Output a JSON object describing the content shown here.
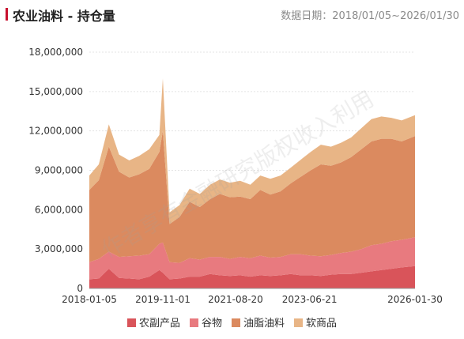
{
  "header": {
    "title": "农业油料 - 持仓量",
    "date_label": "数据日期：",
    "date_range": "2018/01/05~2026/01/30"
  },
  "watermark": "作者享有金融研究版权收入利用",
  "colors": {
    "title_accent": "#c8102e",
    "series": [
      "#d9545a",
      "#e87a7f",
      "#db8a5f",
      "#e8b586"
    ]
  },
  "chart_data": {
    "type": "area",
    "stacked": true,
    "title": "农业油料 - 持仓量",
    "x_start": "2018-01-05",
    "x_end": "2026-01-30",
    "x_ticks": [
      "2018-01-05",
      "2019-11-01",
      "2021-08-20",
      "2023-06-21",
      "2026-01-30"
    ],
    "ylim": [
      0,
      18000000
    ],
    "y_ticks": [
      0,
      3000000,
      6000000,
      9000000,
      12000000,
      15000000,
      18000000
    ],
    "y_tick_labels": [
      "0",
      "3,000,000",
      "6,000,000",
      "9,000,000",
      "12,000,000",
      "15,000,000",
      "18,000,000"
    ],
    "grid": true,
    "legend_position": "bottom",
    "x": [
      "2018-01",
      "2018-04",
      "2018-07",
      "2018-10",
      "2019-01",
      "2019-04",
      "2019-07",
      "2019-10",
      "2019-11",
      "2020-01",
      "2020-04",
      "2020-07",
      "2020-10",
      "2021-01",
      "2021-04",
      "2021-07",
      "2021-10",
      "2022-01",
      "2022-04",
      "2022-07",
      "2022-10",
      "2023-01",
      "2023-04",
      "2023-07",
      "2023-10",
      "2024-01",
      "2024-04",
      "2024-07",
      "2024-10",
      "2025-01",
      "2025-04",
      "2025-07",
      "2025-10",
      "2026-01"
    ],
    "series": [
      {
        "name": "农副产品",
        "values": [
          700000,
          750000,
          1500000,
          800000,
          750000,
          700000,
          900000,
          1400000,
          1200000,
          700000,
          750000,
          900000,
          900000,
          1100000,
          1000000,
          950000,
          1000000,
          900000,
          1000000,
          950000,
          1000000,
          1100000,
          1000000,
          1000000,
          950000,
          1050000,
          1100000,
          1100000,
          1200000,
          1300000,
          1400000,
          1500000,
          1600000,
          1700000
        ]
      },
      {
        "name": "谷物",
        "values": [
          1300000,
          1500000,
          1300000,
          1600000,
          1700000,
          1800000,
          1700000,
          2000000,
          2300000,
          1300000,
          1200000,
          1400000,
          1300000,
          1300000,
          1400000,
          1300000,
          1400000,
          1400000,
          1500000,
          1400000,
          1400000,
          1500000,
          1600000,
          1500000,
          1500000,
          1500000,
          1600000,
          1700000,
          1800000,
          2000000,
          2000000,
          2100000,
          2100000,
          2200000
        ]
      },
      {
        "name": "油脂油料",
        "values": [
          5500000,
          6000000,
          8000000,
          6500000,
          6000000,
          6200000,
          6500000,
          7000000,
          8500000,
          2900000,
          3500000,
          4300000,
          4000000,
          4400000,
          4800000,
          4700000,
          4600000,
          4500000,
          5000000,
          4800000,
          5000000,
          5400000,
          5900000,
          6500000,
          7000000,
          6800000,
          6900000,
          7200000,
          7600000,
          7900000,
          8000000,
          7800000,
          7500000,
          7700000
        ]
      },
      {
        "name": "软商品",
        "values": [
          1100000,
          1200000,
          1700000,
          1300000,
          1300000,
          1400000,
          1500000,
          1300000,
          4000000,
          900000,
          900000,
          1000000,
          1000000,
          1100000,
          1100000,
          1100000,
          1200000,
          1100000,
          1100000,
          1200000,
          1200000,
          1200000,
          1300000,
          1400000,
          1500000,
          1450000,
          1500000,
          1500000,
          1600000,
          1700000,
          1700000,
          1600000,
          1600000,
          1600000
        ]
      }
    ]
  }
}
